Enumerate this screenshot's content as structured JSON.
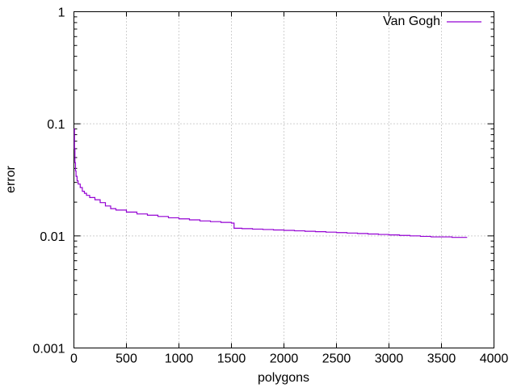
{
  "chart_data": {
    "type": "line",
    "title": "",
    "xlabel": "polygons",
    "ylabel": "error",
    "xlim": [
      0,
      4000
    ],
    "ylim": [
      0.001,
      1
    ],
    "y_scale": "log",
    "grid": true,
    "legend_position": "top-right",
    "x_ticks": [
      "0",
      "500",
      "1000",
      "1500",
      "2000",
      "2500",
      "3000",
      "3500",
      "4000"
    ],
    "y_ticks": [
      "0.001",
      "0.01",
      "0.1",
      "1"
    ],
    "series": [
      {
        "name": "Van Gogh",
        "color": "#9400d3",
        "points": [
          [
            0,
            0.09
          ],
          [
            5,
            0.06
          ],
          [
            10,
            0.045
          ],
          [
            15,
            0.038
          ],
          [
            20,
            0.034
          ],
          [
            30,
            0.031
          ],
          [
            40,
            0.029
          ],
          [
            60,
            0.027
          ],
          [
            80,
            0.025
          ],
          [
            100,
            0.024
          ],
          [
            120,
            0.023
          ],
          [
            150,
            0.022
          ],
          [
            200,
            0.021
          ],
          [
            250,
            0.0198
          ],
          [
            300,
            0.0185
          ],
          [
            350,
            0.0175
          ],
          [
            400,
            0.017
          ],
          [
            500,
            0.0163
          ],
          [
            600,
            0.0157
          ],
          [
            700,
            0.0153
          ],
          [
            800,
            0.0149
          ],
          [
            900,
            0.0145
          ],
          [
            1000,
            0.0142
          ],
          [
            1100,
            0.0139
          ],
          [
            1200,
            0.0136
          ],
          [
            1300,
            0.0134
          ],
          [
            1400,
            0.0132
          ],
          [
            1500,
            0.013
          ],
          [
            1520,
            0.013
          ],
          [
            1525,
            0.0117
          ],
          [
            1600,
            0.0116
          ],
          [
            1700,
            0.0115
          ],
          [
            1800,
            0.0114
          ],
          [
            1900,
            0.0113
          ],
          [
            2000,
            0.0112
          ],
          [
            2100,
            0.0111
          ],
          [
            2200,
            0.011
          ],
          [
            2300,
            0.0109
          ],
          [
            2400,
            0.0108
          ],
          [
            2500,
            0.0107
          ],
          [
            2600,
            0.0106
          ],
          [
            2700,
            0.0105
          ],
          [
            2800,
            0.0104
          ],
          [
            2900,
            0.0103
          ],
          [
            3000,
            0.0102
          ],
          [
            3100,
            0.0101
          ],
          [
            3200,
            0.01
          ],
          [
            3300,
            0.0099
          ],
          [
            3400,
            0.0098
          ],
          [
            3500,
            0.0098
          ],
          [
            3600,
            0.0097
          ],
          [
            3700,
            0.0097
          ],
          [
            3740,
            0.0096
          ]
        ]
      }
    ]
  }
}
